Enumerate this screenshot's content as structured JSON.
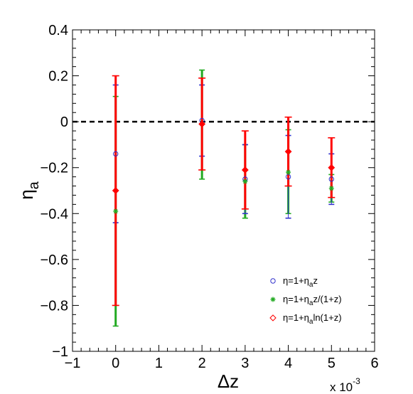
{
  "chart_data": {
    "type": "scatter",
    "title": "",
    "xlabel": "Δz",
    "ylabel": "η",
    "ylabel_sub": "a",
    "x_multiplier": "x 10",
    "x_multiplier_exp": "-3",
    "xlim": [
      -1,
      6
    ],
    "ylim": [
      -1,
      0.4
    ],
    "x_ticks": [
      -1,
      0,
      1,
      2,
      3,
      4,
      5,
      6
    ],
    "x_tick_labels": [
      "−1",
      "0",
      "1",
      "2",
      "3",
      "4",
      "5",
      "6"
    ],
    "y_ticks": [
      -1,
      -0.8,
      -0.6,
      -0.4,
      -0.2,
      0,
      0.2,
      0.4
    ],
    "y_tick_labels": [
      "−1",
      "−0.8",
      "−0.6",
      "−0.4",
      "−0.2",
      "0",
      "0.2",
      "0.4"
    ],
    "reference_line": {
      "y": 0,
      "style": "dashed"
    },
    "legend_position": "bottom-right",
    "grid": false,
    "series": [
      {
        "name_main": "η=1+η",
        "name_sub": "a",
        "name_rest": "z",
        "marker": "open-circle",
        "color": "#3333cc",
        "x": [
          0,
          2,
          3,
          4,
          5
        ],
        "y": [
          -0.14,
          0.005,
          -0.25,
          -0.24,
          -0.25
        ],
        "err_low": [
          -0.44,
          -0.15,
          -0.4,
          -0.42,
          -0.36
        ],
        "err_high": [
          0.16,
          0.16,
          -0.1,
          -0.06,
          -0.14
        ]
      },
      {
        "name_main": "η=1+η",
        "name_sub": "a",
        "name_rest": "z/(1+z)",
        "marker": "star",
        "color": "#22aa22",
        "x": [
          0,
          2,
          3,
          4,
          5
        ],
        "y": [
          -0.39,
          -0.01,
          -0.26,
          -0.22,
          -0.29
        ],
        "err_low": [
          -0.89,
          -0.25,
          -0.42,
          -0.4,
          -0.35
        ],
        "err_high": [
          0.11,
          0.225,
          -0.1,
          -0.035,
          -0.23
        ]
      },
      {
        "name_main": "η=1+η",
        "name_sub": "a",
        "name_rest": "ln(1+z)",
        "marker": "diamond",
        "color": "#ff0000",
        "x": [
          0,
          2,
          3,
          4,
          5
        ],
        "y": [
          -0.3,
          -0.01,
          -0.21,
          -0.13,
          -0.2
        ],
        "err_low": [
          -0.8,
          -0.21,
          -0.38,
          -0.28,
          -0.33
        ],
        "err_high": [
          0.2,
          0.19,
          -0.04,
          0.02,
          -0.07
        ]
      }
    ]
  },
  "colors": {
    "axis": "#000000",
    "background": "#ffffff"
  }
}
